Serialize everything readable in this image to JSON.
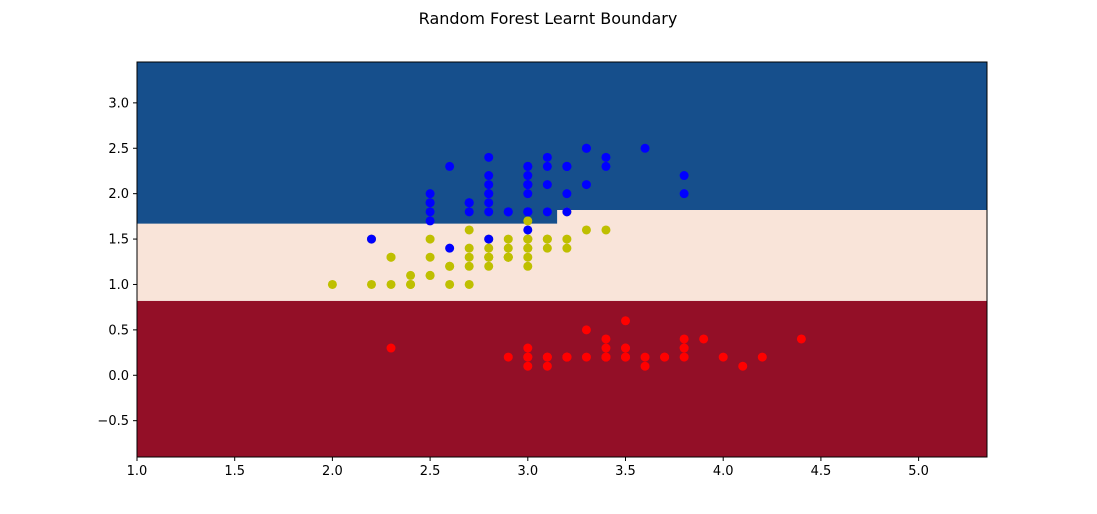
{
  "chart_data": {
    "type": "scatter",
    "title": "Random Forest Learnt Boundary",
    "xlabel": "",
    "ylabel": "",
    "xlim": [
      1.0,
      5.35
    ],
    "ylim": [
      -0.9,
      3.45
    ],
    "x_ticks": [
      "1.0",
      "1.5",
      "2.0",
      "2.5",
      "3.0",
      "3.5",
      "4.0",
      "4.5",
      "5.0"
    ],
    "x_tick_values": [
      1.0,
      1.5,
      2.0,
      2.5,
      3.0,
      3.5,
      4.0,
      4.5,
      5.0
    ],
    "y_ticks": [
      "−0.5",
      "0.0",
      "0.5",
      "1.0",
      "1.5",
      "2.0",
      "2.5",
      "3.0"
    ],
    "y_tick_values": [
      -0.5,
      0.0,
      0.5,
      1.0,
      1.5,
      2.0,
      2.5,
      3.0
    ],
    "grid": false,
    "regions": [
      {
        "color": "#164f8c",
        "y_from": 1.82,
        "y_to": 3.45,
        "step": {
          "x": 3.15,
          "y_left": 1.67
        }
      },
      {
        "color": "#f9e4d9",
        "y_from": 0.82,
        "y_to": 1.82,
        "step": {
          "x": 3.15,
          "y_left": 1.67
        }
      },
      {
        "color": "#930f27",
        "y_from": -0.9,
        "y_to": 0.82
      }
    ],
    "series": [
      {
        "color": "#ff0000",
        "points": [
          [
            3.5,
            0.2
          ],
          [
            3.0,
            0.2
          ],
          [
            3.2,
            0.2
          ],
          [
            3.1,
            0.2
          ],
          [
            3.6,
            0.2
          ],
          [
            3.4,
            0.4
          ],
          [
            3.4,
            0.3
          ],
          [
            3.4,
            0.2
          ],
          [
            3.0,
            0.1
          ],
          [
            3.7,
            0.2
          ],
          [
            4.0,
            0.2
          ],
          [
            4.4,
            0.4
          ],
          [
            3.9,
            0.4
          ],
          [
            3.5,
            0.3
          ],
          [
            3.8,
            0.3
          ],
          [
            3.8,
            0.3
          ],
          [
            3.3,
            0.5
          ],
          [
            3.4,
            0.2
          ],
          [
            4.1,
            0.1
          ],
          [
            4.2,
            0.2
          ],
          [
            3.1,
            0.1
          ],
          [
            3.2,
            0.2
          ],
          [
            3.5,
            0.2
          ],
          [
            3.6,
            0.1
          ],
          [
            3.0,
            0.2
          ],
          [
            3.4,
            0.2
          ],
          [
            3.5,
            0.3
          ],
          [
            2.3,
            0.3
          ],
          [
            3.2,
            0.2
          ],
          [
            3.5,
            0.6
          ],
          [
            3.8,
            0.4
          ],
          [
            3.0,
            0.3
          ],
          [
            3.8,
            0.2
          ],
          [
            3.2,
            0.2
          ],
          [
            3.7,
            0.2
          ],
          [
            3.3,
            0.2
          ],
          [
            3.1,
            0.2
          ],
          [
            2.9,
            0.2
          ]
        ]
      },
      {
        "color": "#bfbf00",
        "points": [
          [
            3.2,
            1.4
          ],
          [
            3.2,
            1.5
          ],
          [
            3.1,
            1.5
          ],
          [
            2.3,
            1.3
          ],
          [
            2.8,
            1.5
          ],
          [
            2.8,
            1.3
          ],
          [
            3.3,
            1.6
          ],
          [
            2.4,
            1.0
          ],
          [
            2.9,
            1.3
          ],
          [
            2.7,
            1.4
          ],
          [
            2.0,
            1.0
          ],
          [
            3.0,
            1.5
          ],
          [
            2.2,
            1.0
          ],
          [
            2.9,
            1.4
          ],
          [
            2.9,
            1.3
          ],
          [
            3.1,
            1.4
          ],
          [
            3.0,
            1.5
          ],
          [
            2.7,
            1.0
          ],
          [
            2.2,
            1.5
          ],
          [
            2.5,
            1.1
          ],
          [
            3.2,
            1.8
          ],
          [
            2.8,
            1.3
          ],
          [
            2.5,
            1.5
          ],
          [
            2.8,
            1.2
          ],
          [
            2.9,
            1.3
          ],
          [
            3.0,
            1.4
          ],
          [
            2.8,
            1.4
          ],
          [
            3.0,
            1.7
          ],
          [
            2.9,
            1.5
          ],
          [
            2.6,
            1.0
          ],
          [
            2.4,
            1.1
          ],
          [
            2.4,
            1.0
          ],
          [
            2.7,
            1.2
          ],
          [
            2.7,
            1.6
          ],
          [
            3.0,
            1.5
          ],
          [
            3.4,
            1.6
          ],
          [
            3.1,
            1.5
          ],
          [
            2.3,
            1.3
          ],
          [
            3.0,
            1.3
          ],
          [
            2.5,
            1.3
          ],
          [
            2.6,
            1.2
          ],
          [
            3.0,
            1.4
          ],
          [
            2.6,
            1.2
          ],
          [
            2.3,
            1.0
          ],
          [
            2.7,
            1.3
          ],
          [
            3.0,
            1.2
          ],
          [
            2.9,
            1.3
          ],
          [
            2.9,
            1.3
          ],
          [
            2.5,
            1.1
          ],
          [
            2.8,
            1.3
          ]
        ]
      },
      {
        "color": "#0000ff",
        "points": [
          [
            3.3,
            2.5
          ],
          [
            2.7,
            1.9
          ],
          [
            3.0,
            2.1
          ],
          [
            2.9,
            1.8
          ],
          [
            3.0,
            2.2
          ],
          [
            3.0,
            2.1
          ],
          [
            2.5,
            1.7
          ],
          [
            2.9,
            1.8
          ],
          [
            2.5,
            1.8
          ],
          [
            3.6,
            2.5
          ],
          [
            3.2,
            2.0
          ],
          [
            2.7,
            1.9
          ],
          [
            3.0,
            2.1
          ],
          [
            2.5,
            2.0
          ],
          [
            2.8,
            2.4
          ],
          [
            3.2,
            2.3
          ],
          [
            3.0,
            1.8
          ],
          [
            3.8,
            2.2
          ],
          [
            2.6,
            2.3
          ],
          [
            2.2,
            1.5
          ],
          [
            3.2,
            2.3
          ],
          [
            2.8,
            2.0
          ],
          [
            2.8,
            2.0
          ],
          [
            2.7,
            1.8
          ],
          [
            3.3,
            2.1
          ],
          [
            3.2,
            1.8
          ],
          [
            2.8,
            1.8
          ],
          [
            3.0,
            1.8
          ],
          [
            2.8,
            2.1
          ],
          [
            3.0,
            1.6
          ],
          [
            2.8,
            1.9
          ],
          [
            3.8,
            2.0
          ],
          [
            2.8,
            2.2
          ],
          [
            2.8,
            1.5
          ],
          [
            2.6,
            1.4
          ],
          [
            3.0,
            2.3
          ],
          [
            3.4,
            2.4
          ],
          [
            3.1,
            1.8
          ],
          [
            3.0,
            1.8
          ],
          [
            3.1,
            2.1
          ],
          [
            3.1,
            2.4
          ],
          [
            3.1,
            2.3
          ],
          [
            2.7,
            1.9
          ],
          [
            3.2,
            2.3
          ],
          [
            3.3,
            2.5
          ],
          [
            3.0,
            2.3
          ],
          [
            2.5,
            1.9
          ],
          [
            3.0,
            2.0
          ],
          [
            3.4,
            2.3
          ],
          [
            3.0,
            1.8
          ],
          [
            2.5,
            1.9
          ]
        ]
      }
    ]
  }
}
